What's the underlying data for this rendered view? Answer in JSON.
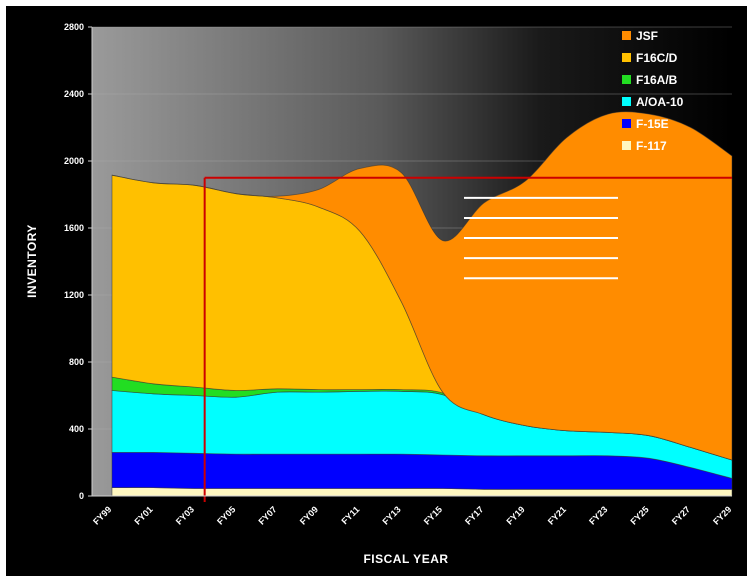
{
  "chart_data": {
    "type": "area",
    "stacked": true,
    "xlabel": "FISCAL YEAR",
    "ylabel": "INVENTORY",
    "ylim": [
      0,
      2800
    ],
    "y_ticks": [
      0,
      400,
      800,
      1200,
      1600,
      2000,
      2400,
      2800
    ],
    "categories": [
      "FY99",
      "FY01",
      "FY03",
      "FY05",
      "FY07",
      "FY09",
      "FY11",
      "FY13",
      "FY15",
      "FY17",
      "FY19",
      "FY21",
      "FY23",
      "FY25",
      "FY27",
      "FY29"
    ],
    "grid": true,
    "legend_position": "top-right",
    "series": [
      {
        "name": "F-117",
        "color": "#FFF7C0",
        "values": [
          50,
          50,
          45,
          45,
          45,
          45,
          45,
          45,
          45,
          40,
          40,
          40,
          40,
          40,
          40,
          40
        ]
      },
      {
        "name": "F-15E",
        "color": "#0000FF",
        "values": [
          210,
          210,
          210,
          205,
          205,
          205,
          205,
          205,
          200,
          200,
          200,
          200,
          200,
          185,
          130,
          65
        ]
      },
      {
        "name": "A/OA-10",
        "color": "#00FFFF",
        "values": [
          370,
          350,
          345,
          340,
          370,
          370,
          375,
          375,
          360,
          245,
          180,
          150,
          140,
          135,
          120,
          110
        ]
      },
      {
        "name": "F16A/B",
        "color": "#22DD22",
        "values": [
          80,
          60,
          50,
          40,
          20,
          15,
          10,
          10,
          10,
          0,
          0,
          0,
          0,
          0,
          0,
          0
        ]
      },
      {
        "name": "F16C/D",
        "color": "#FFC000",
        "values": [
          1205,
          1200,
          1205,
          1175,
          1140,
          1090,
          945,
          525,
          5,
          0,
          0,
          0,
          0,
          0,
          0,
          0
        ]
      },
      {
        "name": "JSF",
        "color": "#FF8C00",
        "values": [
          0,
          0,
          0,
          0,
          10,
          105,
          375,
          770,
          905,
          1265,
          1460,
          1750,
          1900,
          1920,
          1910,
          1815
        ]
      }
    ]
  },
  "legend": {
    "items": [
      {
        "label": "JSF",
        "color": "#FF8C00"
      },
      {
        "label": "F16C/D",
        "color": "#FFC000"
      },
      {
        "label": "F16A/B",
        "color": "#22DD22"
      },
      {
        "label": "A/OA-10",
        "color": "#00FFFF"
      },
      {
        "label": "F-15E",
        "color": "#0000FF"
      },
      {
        "label": "F-117",
        "color": "#FFF7C0"
      }
    ]
  },
  "reference_lines": {
    "color": "#CC0000",
    "horizontal_y": 1900,
    "vertical_x": "FY03"
  },
  "highlight_color": "#FFFFFF"
}
